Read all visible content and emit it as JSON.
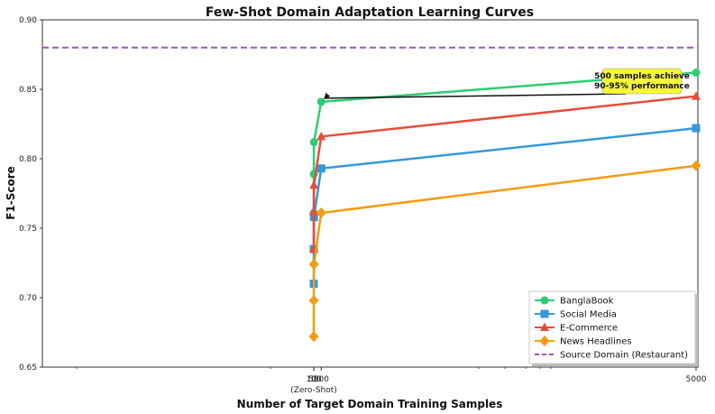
{
  "chart_data": {
    "type": "line",
    "title": "Few-Shot Domain Adaptation Learning Curves",
    "xlabel": "Number of Target Domain Training Samples",
    "ylabel": "F1-Score",
    "ylim": [
      0.65,
      0.9
    ],
    "yticks": [
      "0.65",
      "0.70",
      "0.75",
      "0.80",
      "0.85",
      "0.90"
    ],
    "yticks_values": [
      0.65,
      0.7,
      0.75,
      0.8,
      0.85,
      0.9
    ],
    "x": [
      0,
      50,
      100,
      500,
      5000
    ],
    "xtick_labels": [
      "0",
      "50",
      "100",
      "500",
      "5000"
    ],
    "zero_shot_label": "(Zero-Shot)",
    "series": [
      {
        "name": "BanglaBook",
        "color": "#2ecc71",
        "marker": "circle",
        "values": [
          0.761,
          0.789,
          0.812,
          0.841,
          0.862
        ]
      },
      {
        "name": "Social Media",
        "color": "#3498db",
        "marker": "square",
        "values": [
          0.71,
          0.735,
          0.758,
          0.793,
          0.822
        ]
      },
      {
        "name": "E-Commerce",
        "color": "#e74c3c",
        "marker": "triangle",
        "values": [
          0.735,
          0.762,
          0.781,
          0.816,
          0.845
        ]
      },
      {
        "name": "News Headlines",
        "color": "#f39c12",
        "marker": "diamond",
        "values": [
          0.672,
          0.698,
          0.724,
          0.761,
          0.795
        ]
      }
    ],
    "reference_line": {
      "name": "Source Domain (Restaurant)",
      "value": 0.88,
      "color": "#9b59b6"
    },
    "annotation": {
      "lines": [
        "500 samples achieve",
        "90-95% performance"
      ],
      "target_x": 500,
      "target_y": 0.841,
      "bg": "#f7f73a"
    },
    "legend_position": "bottom-right",
    "grid": false
  }
}
